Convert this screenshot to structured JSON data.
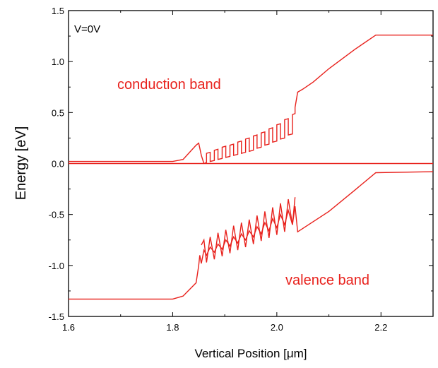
{
  "chart_data": {
    "type": "line",
    "title": "",
    "xlabel": "Vertical Position [μm]",
    "ylabel": "Energy [eV]",
    "xlim": [
      1.6,
      2.3
    ],
    "ylim": [
      -1.5,
      1.5
    ],
    "x_ticks": [
      1.6,
      1.8,
      2.0,
      2.2
    ],
    "x_tick_labels": [
      "1.6",
      "1.8",
      "2.0",
      "2.2"
    ],
    "y_ticks": [
      -1.5,
      -1.0,
      -0.5,
      0.0,
      0.5,
      1.0,
      1.5
    ],
    "y_tick_labels": [
      "-1.5",
      "-1.0",
      "-0.5",
      "0.0",
      "0.5",
      "1.0",
      "1.5"
    ],
    "grid": false,
    "line_color": "#e8211c",
    "annotations": {
      "voltage": "V=0V",
      "conduction": "conduction band",
      "valence": "valence band"
    },
    "series": [
      {
        "x": [
          1.6,
          1.8,
          1.82,
          1.845,
          1.85,
          1.855,
          1.86
        ],
        "y": [
          0.02,
          0.02,
          0.04,
          0.18,
          0.2,
          0.08,
          0.0
        ]
      },
      {
        "x": [
          1.86,
          1.865,
          1.865,
          1.872,
          1.872,
          1.88,
          1.88,
          1.887,
          1.887,
          1.895,
          1.895,
          1.902,
          1.902,
          1.91,
          1.91,
          1.917,
          1.917,
          1.925,
          1.925,
          1.932,
          1.932,
          1.94,
          1.94,
          1.947,
          1.947,
          1.955,
          1.955,
          1.962,
          1.962,
          1.97,
          1.97,
          1.977,
          1.977,
          1.985,
          1.985,
          1.992,
          1.992,
          2.0,
          2.0,
          2.007,
          2.007,
          2.015,
          2.015,
          2.022,
          2.022,
          2.03,
          2.03,
          2.035,
          2.035,
          2.04,
          2.05,
          2.07,
          2.1,
          2.15,
          2.19,
          2.3
        ],
        "y": [
          0.0,
          0.01,
          0.1,
          0.11,
          0.02,
          0.03,
          0.13,
          0.14,
          0.04,
          0.05,
          0.16,
          0.17,
          0.06,
          0.07,
          0.18,
          0.19,
          0.08,
          0.09,
          0.21,
          0.22,
          0.1,
          0.11,
          0.24,
          0.25,
          0.12,
          0.13,
          0.27,
          0.28,
          0.15,
          0.16,
          0.3,
          0.31,
          0.18,
          0.19,
          0.34,
          0.35,
          0.21,
          0.22,
          0.38,
          0.39,
          0.24,
          0.25,
          0.43,
          0.44,
          0.28,
          0.29,
          0.48,
          0.49,
          0.55,
          0.7,
          0.73,
          0.8,
          0.93,
          1.12,
          1.26,
          1.26
        ]
      },
      {
        "x": [
          1.6,
          2.3
        ],
        "y": [
          0.0,
          0.0
        ]
      },
      {
        "x": [
          1.6,
          1.8,
          1.82,
          1.845,
          1.85,
          1.852,
          1.855,
          1.86,
          1.865,
          1.872,
          1.88,
          1.887,
          1.895,
          1.902,
          1.91,
          1.917,
          1.925,
          1.932,
          1.94,
          1.947,
          1.955,
          1.962,
          1.97,
          1.977,
          1.985,
          1.992,
          2.0,
          2.007,
          2.015,
          2.022,
          2.03,
          2.035,
          2.04,
          2.1,
          2.15,
          2.19,
          2.3
        ],
        "y": [
          -1.33,
          -1.33,
          -1.3,
          -1.17,
          -1.0,
          -0.9,
          -0.98,
          -0.85,
          -0.9,
          -0.82,
          -0.87,
          -0.79,
          -0.84,
          -0.75,
          -0.81,
          -0.72,
          -0.78,
          -0.69,
          -0.75,
          -0.66,
          -0.72,
          -0.62,
          -0.69,
          -0.58,
          -0.66,
          -0.54,
          -0.63,
          -0.5,
          -0.6,
          -0.46,
          -0.6,
          -0.42,
          -0.67,
          -0.47,
          -0.26,
          -0.09,
          -0.08
        ]
      },
      {
        "x": [
          1.855,
          1.86,
          1.865,
          1.872,
          1.88,
          1.887,
          1.895,
          1.902,
          1.91,
          1.917,
          1.925,
          1.932,
          1.94,
          1.947,
          1.955,
          1.962,
          1.97,
          1.977,
          1.985,
          1.992,
          2.0,
          2.007,
          2.015,
          2.022,
          2.03,
          2.035
        ],
        "y": [
          -0.8,
          -0.75,
          -0.97,
          -0.72,
          -0.94,
          -0.68,
          -0.91,
          -0.65,
          -0.88,
          -0.61,
          -0.85,
          -0.58,
          -0.82,
          -0.55,
          -0.79,
          -0.51,
          -0.76,
          -0.47,
          -0.73,
          -0.43,
          -0.7,
          -0.39,
          -0.67,
          -0.35,
          -0.6,
          -0.33
        ]
      }
    ]
  }
}
